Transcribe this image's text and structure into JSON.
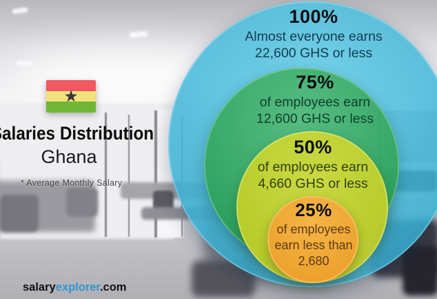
{
  "header": {
    "title": "Salaries Distribution",
    "country": "Ghana",
    "note": "* Average Monthly Salary"
  },
  "flag": {
    "name": "Ghana flag",
    "star": "★",
    "stripe_colors": [
      "#f05862",
      "#f2e27c",
      "#71b637"
    ],
    "star_color": "#38383e"
  },
  "footer": {
    "brand_salary": "salary",
    "brand_explorer": "explorer",
    "brand_tld": ".com"
  },
  "accent_colors": {
    "circle_100": "#3eb6d8",
    "circle_75": "#2aa052",
    "circle_50": "#c0cd24",
    "circle_25": "#eea02c",
    "watermark_blue": "#2f97d0"
  },
  "chart_data": {
    "type": "concentric_circle_percentiles",
    "title": "Salaries Distribution",
    "region": "Ghana",
    "note": "* Average Monthly Salary",
    "currency": "GHS",
    "series": [
      {
        "percent": "100%",
        "line1": "Almost everyone earns",
        "line2": "22,600 GHS or less",
        "value": 22600,
        "color": "#3eb6d8"
      },
      {
        "percent": "75%",
        "line1": "of employees earn",
        "line2": "12,600 GHS or less",
        "value": 12600,
        "color": "#2aa052"
      },
      {
        "percent": "50%",
        "line1": "of employees earn",
        "line2": "4,660 GHS or less",
        "value": 4660,
        "color": "#c0cd24"
      },
      {
        "percent": "25%",
        "line1": "of employees",
        "line2": "earn less than",
        "line3": "2,680",
        "value": 2680,
        "color": "#eea02c"
      }
    ]
  }
}
